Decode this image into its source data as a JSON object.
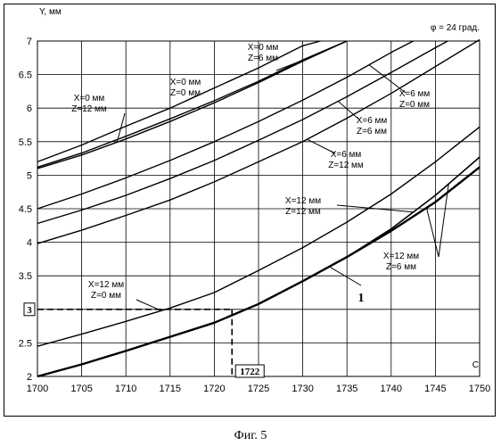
{
  "chart_data": {
    "type": "line",
    "xlabel": "C",
    "ylabel": "Y, мм",
    "title": "φ = 24 град.",
    "caption": "Фиг. 5",
    "xlim": [
      1700,
      1750
    ],
    "ylim": [
      2,
      7
    ],
    "xticks": [
      "1700",
      "1705",
      "1710",
      "1715",
      "1720",
      "1725",
      "1730",
      "1735",
      "1740",
      "1745",
      "1750"
    ],
    "yticks": [
      "2",
      "2.5",
      "3",
      "3.5",
      "4",
      "4.5",
      "5",
      "5.5",
      "6",
      "6.5",
      "7"
    ],
    "grid": true,
    "series": [
      {
        "name": "X=0 мм Z=0 мм",
        "points": [
          [
            1700,
            5.2
          ],
          [
            1705,
            5.45
          ],
          [
            1710,
            5.73
          ],
          [
            1715,
            6.0
          ],
          [
            1720,
            6.3
          ],
          [
            1725,
            6.6
          ],
          [
            1730,
            6.93
          ],
          [
            1732,
            7.0
          ]
        ]
      },
      {
        "name": "X=0 мм Z=6 мм",
        "points": [
          [
            1700,
            5.12
          ],
          [
            1705,
            5.33
          ],
          [
            1710,
            5.58
          ],
          [
            1715,
            5.84
          ],
          [
            1720,
            6.11
          ],
          [
            1725,
            6.4
          ],
          [
            1730,
            6.72
          ],
          [
            1735,
            7.0
          ]
        ]
      },
      {
        "name": "X=0 мм Z=12 мм",
        "points": [
          [
            1700,
            5.1
          ],
          [
            1705,
            5.3
          ],
          [
            1710,
            5.54
          ],
          [
            1715,
            5.8
          ],
          [
            1720,
            6.08
          ],
          [
            1725,
            6.38
          ],
          [
            1730,
            6.7
          ],
          [
            1735,
            7.0
          ]
        ]
      },
      {
        "name": "X=6 мм Z=0 мм",
        "points": [
          [
            1700,
            4.5
          ],
          [
            1705,
            4.72
          ],
          [
            1710,
            4.96
          ],
          [
            1715,
            5.22
          ],
          [
            1720,
            5.5
          ],
          [
            1725,
            5.8
          ],
          [
            1730,
            6.12
          ],
          [
            1735,
            6.46
          ],
          [
            1740,
            6.83
          ],
          [
            1742.5,
            7.0
          ]
        ]
      },
      {
        "name": "X=6 мм Z=6 мм",
        "points": [
          [
            1700,
            4.28
          ],
          [
            1705,
            4.48
          ],
          [
            1710,
            4.7
          ],
          [
            1715,
            4.95
          ],
          [
            1720,
            5.22
          ],
          [
            1725,
            5.52
          ],
          [
            1730,
            5.83
          ],
          [
            1735,
            6.17
          ],
          [
            1740,
            6.53
          ],
          [
            1745,
            6.9
          ],
          [
            1746.4,
            7.0
          ]
        ]
      },
      {
        "name": "X=6 мм Z=12 мм",
        "points": [
          [
            1700,
            3.98
          ],
          [
            1705,
            4.18
          ],
          [
            1710,
            4.4
          ],
          [
            1715,
            4.63
          ],
          [
            1720,
            4.9
          ],
          [
            1725,
            5.2
          ],
          [
            1730,
            5.5
          ],
          [
            1735,
            5.85
          ],
          [
            1740,
            6.22
          ],
          [
            1745,
            6.62
          ],
          [
            1750,
            7.02
          ]
        ]
      },
      {
        "name": "X=12 мм Z=0 мм",
        "points": [
          [
            1700,
            2.45
          ],
          [
            1705,
            2.63
          ],
          [
            1710,
            2.82
          ],
          [
            1715,
            3.02
          ],
          [
            1720,
            3.25
          ],
          [
            1725,
            3.58
          ],
          [
            1730,
            3.92
          ],
          [
            1735,
            4.3
          ],
          [
            1740,
            4.72
          ],
          [
            1745,
            5.2
          ],
          [
            1750,
            5.72
          ]
        ]
      },
      {
        "name": "X=12 мм Z=6 мм",
        "points": [
          [
            1700,
            2.0
          ],
          [
            1705,
            2.18
          ],
          [
            1710,
            2.38
          ],
          [
            1715,
            2.59
          ],
          [
            1720,
            2.8
          ],
          [
            1725,
            3.08
          ],
          [
            1730,
            3.42
          ],
          [
            1735,
            3.78
          ],
          [
            1740,
            4.17
          ],
          [
            1745,
            4.6
          ],
          [
            1750,
            5.12
          ]
        ]
      },
      {
        "name": "X=12 мм Z=12 мм",
        "points": [
          [
            1700,
            2.0
          ],
          [
            1705,
            2.18
          ],
          [
            1710,
            2.38
          ],
          [
            1715,
            2.59
          ],
          [
            1720,
            2.8
          ],
          [
            1725,
            3.08
          ],
          [
            1730,
            3.42
          ],
          [
            1735,
            3.78
          ],
          [
            1740,
            4.2
          ],
          [
            1745,
            4.7
          ],
          [
            1750,
            5.27
          ]
        ]
      }
    ],
    "reference": {
      "x": 1722,
      "y": 3,
      "x_label": "1722",
      "y_label": "3"
    },
    "curve_marker": "1",
    "labels": [
      {
        "series": "X=0 мм Z=0 мм",
        "line1": "X=0 мм",
        "line2": "Z=0 мм"
      },
      {
        "series": "X=0 мм Z=6 мм",
        "line1": "X=0 мм",
        "line2": "Z=6 мм"
      },
      {
        "series": "X=0 мм Z=12 мм",
        "line1": "X=0 мм",
        "line2": "Z=12 мм"
      },
      {
        "series": "X=6 мм Z=0 мм",
        "line1": "X=6 мм",
        "line2": "Z=0 мм"
      },
      {
        "series": "X=6 мм Z=6 мм",
        "line1": "X=6 мм",
        "line2": "Z=6 мм"
      },
      {
        "series": "X=6 мм Z=12 мм",
        "line1": "X=6 мм",
        "line2": "Z=12 мм"
      },
      {
        "series": "X=12 мм Z=12 мм",
        "line1": "X=12 мм",
        "line2": "Z=12 мм"
      },
      {
        "series": "X=12 мм Z=0 мм",
        "line1": "X=12 мм",
        "line2": "Z=0 мм"
      },
      {
        "series": "X=12 мм Z=6 мм",
        "line1": "X=12 мм",
        "line2": "Z=6 мм"
      }
    ]
  }
}
